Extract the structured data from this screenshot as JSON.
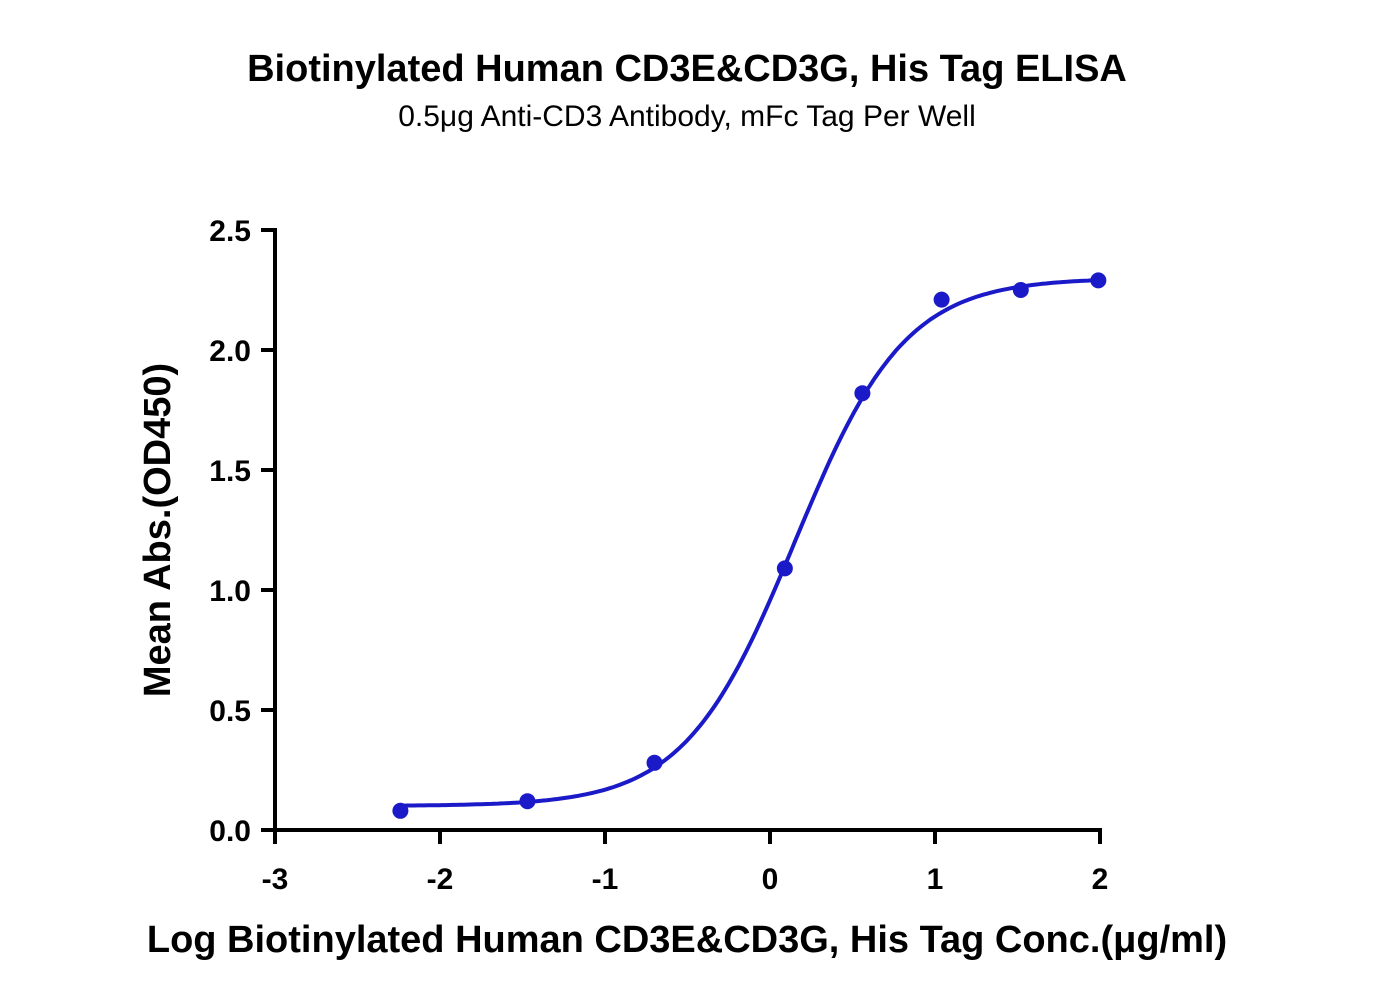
{
  "chart_data": {
    "type": "scatter",
    "title": "Biotinylated Human CD3E&CD3G, His Tag ELISA",
    "subtitle": "0.5μg Anti-CD3 Antibody, mFc Tag Per Well",
    "xlabel": "Log Biotinylated Human CD3E&CD3G, His Tag Conc.(μg/ml)",
    "ylabel": "Mean Abs.(OD450)",
    "xlim": [
      -3,
      2
    ],
    "ylim": [
      0,
      2.5
    ],
    "xticks": [
      "-3",
      "-2",
      "-1",
      "0",
      "1",
      "2"
    ],
    "yticks": [
      "0.0",
      "0.5",
      "1.0",
      "1.5",
      "2.0",
      "2.5"
    ],
    "grid": false,
    "color": "#1a1ac8",
    "points": {
      "x": [
        -2.24,
        -1.47,
        -0.7,
        0.09,
        0.56,
        1.04,
        1.52,
        1.99
      ],
      "y": [
        0.08,
        0.12,
        0.28,
        1.09,
        1.82,
        2.21,
        2.25,
        2.29
      ]
    },
    "fit": {
      "model": "4PL",
      "bottom": 0.1,
      "top": 2.3,
      "logEC50": 0.15,
      "hill": 1.3
    }
  }
}
